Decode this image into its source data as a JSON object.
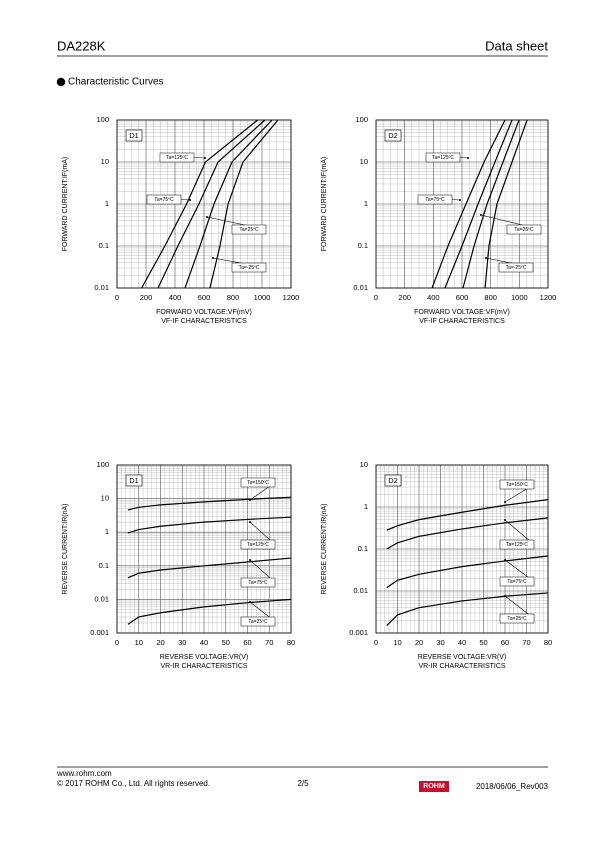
{
  "header": {
    "part": "DA228K",
    "doc": "Data sheet",
    "section": "Characteristic Curves"
  },
  "chart_data": [
    {
      "type": "line",
      "label": "D1",
      "xlabel": "FORWARD VOLTAGE:VF(mV)",
      "ylabel": "FORWARD CURRENT:IF(mA)",
      "subtitle": "VF-IF CHARACTERISTICS",
      "xlim": [
        0,
        1200
      ],
      "xticks": [
        0,
        200,
        400,
        600,
        800,
        1000,
        1200
      ],
      "ylim": [
        0.01,
        100
      ],
      "yticks": [
        0.01,
        0.1,
        1,
        10,
        100
      ],
      "ylog": true,
      "grid": true,
      "series": [
        {
          "name": "Ta=125ºC",
          "color": "#000000",
          "x": [
            170,
            330,
            480,
            610,
            970
          ],
          "values": [
            0.01,
            0.1,
            1,
            10,
            100
          ]
        },
        {
          "name": "Ta=75ºC",
          "color": "#000000",
          "x": [
            283,
            420,
            565,
            697,
            1020
          ],
          "values": [
            0.01,
            0.1,
            1,
            10,
            100
          ]
        },
        {
          "name": "Ta=25ºC",
          "color": "#000000",
          "x": [
            469,
            572,
            669,
            793,
            1069
          ],
          "values": [
            0.01,
            0.1,
            1,
            10,
            100
          ]
        },
        {
          "name": "Ta=-25ºC",
          "color": "#000000",
          "x": [
            641,
            710,
            766,
            869,
            1110
          ],
          "values": [
            0.01,
            0.1,
            1,
            10,
            100
          ]
        }
      ]
    },
    {
      "type": "line",
      "label": "D2",
      "xlabel": "FORWARD VOLTAGE:VF(mV)",
      "ylabel": "FORWARD CURRENT:IF(mA)",
      "subtitle": "VF-IF CHARACTERISTICS",
      "xlim": [
        0,
        1200
      ],
      "xticks": [
        0,
        200,
        400,
        600,
        800,
        1000,
        1200
      ],
      "ylim": [
        0.01,
        100
      ],
      "yticks": [
        0.01,
        0.1,
        1,
        10,
        100
      ],
      "ylog": true,
      "grid": true,
      "series": [
        {
          "name": "Ta=125ºC",
          "color": "#000000",
          "x": [
            391,
            502,
            628,
            754,
            900
          ],
          "values": [
            0.01,
            0.1,
            1,
            10,
            100
          ]
        },
        {
          "name": "Ta=75ºC",
          "color": "#000000",
          "x": [
            481,
            600,
            712,
            830,
            949
          ],
          "values": [
            0.01,
            0.1,
            1,
            10,
            100
          ]
        },
        {
          "name": "Ta=25ºC",
          "color": "#000000",
          "x": [
            607,
            684,
            775,
            886,
            998
          ],
          "values": [
            0.01,
            0.1,
            1,
            10,
            100
          ]
        },
        {
          "name": "Ta=-25ºC",
          "color": "#000000",
          "x": [
            761,
            788,
            844,
            949,
            1054
          ],
          "values": [
            0.01,
            0.1,
            1,
            10,
            100
          ]
        }
      ]
    },
    {
      "type": "line",
      "label": "D1",
      "xlabel": "REVERSE VOLTAGE:VR(V)",
      "ylabel": "REVERSE CURRENT:IR(nA)",
      "subtitle": "VR-IR CHARACTERISTICS",
      "xlim": [
        0,
        80
      ],
      "xticks": [
        0,
        10,
        20,
        30,
        40,
        50,
        60,
        70,
        80
      ],
      "ylim": [
        0.001,
        100
      ],
      "yticks": [
        0.001,
        0.01,
        0.1,
        1,
        10,
        100
      ],
      "ylog": true,
      "grid": true,
      "series": [
        {
          "name": "Ta=150ºC",
          "color": "#000000",
          "x": [
            5,
            10,
            20,
            40,
            60,
            80
          ],
          "values": [
            4.6,
            5.5,
            6.5,
            8,
            9.5,
            11
          ]
        },
        {
          "name": "Ta=125ºC",
          "color": "#000000",
          "x": [
            5,
            10,
            20,
            40,
            60,
            80
          ],
          "values": [
            0.95,
            1.2,
            1.5,
            2,
            2.4,
            2.8
          ]
        },
        {
          "name": "Ta=75ºC",
          "color": "#000000",
          "x": [
            5,
            10,
            20,
            40,
            60,
            80
          ],
          "values": [
            0.044,
            0.06,
            0.075,
            0.1,
            0.13,
            0.17
          ]
        },
        {
          "name": "Ta=25ºC",
          "color": "#000000",
          "x": [
            5,
            10,
            20,
            40,
            60,
            80
          ],
          "values": [
            0.0018,
            0.003,
            0.004,
            0.006,
            0.008,
            0.01
          ]
        }
      ]
    },
    {
      "type": "line",
      "label": "D2",
      "xlabel": "REVERSE VOLTAGE:VR(V)",
      "ylabel": "REVERSE CURRENT:IR(nA)",
      "subtitle": "VR-IR CHARACTERISTICS",
      "xlim": [
        0,
        80
      ],
      "xticks": [
        0,
        10,
        20,
        30,
        40,
        50,
        60,
        70,
        80
      ],
      "ylim": [
        0.001,
        10
      ],
      "yticks": [
        0.001,
        0.01,
        0.1,
        1,
        10
      ],
      "ylog": true,
      "grid": true,
      "series": [
        {
          "name": "Ta=150ºC",
          "color": "#000000",
          "x": [
            5,
            10,
            20,
            40,
            60,
            80
          ],
          "values": [
            0.28,
            0.36,
            0.5,
            0.75,
            1.1,
            1.5
          ]
        },
        {
          "name": "Ta=125ºC",
          "color": "#000000",
          "x": [
            5,
            10,
            20,
            40,
            60,
            80
          ],
          "values": [
            0.1,
            0.14,
            0.2,
            0.3,
            0.42,
            0.55
          ]
        },
        {
          "name": "Ta=75ºC",
          "color": "#000000",
          "x": [
            5,
            10,
            20,
            40,
            60,
            80
          ],
          "values": [
            0.012,
            0.018,
            0.025,
            0.038,
            0.052,
            0.068
          ]
        },
        {
          "name": "Ta=25ºC",
          "color": "#000000",
          "x": [
            5,
            10,
            20,
            40,
            60,
            80
          ],
          "values": [
            0.0015,
            0.0027,
            0.004,
            0.0058,
            0.0075,
            0.009
          ]
        }
      ]
    }
  ],
  "footer": {
    "url": "www.rohm.com",
    "copyright": "© 2017 ROHM Co., Ltd. All rights reserved.",
    "page": "2/5",
    "logo": "ROHM",
    "revision": "2018/06/06_Rev003"
  }
}
